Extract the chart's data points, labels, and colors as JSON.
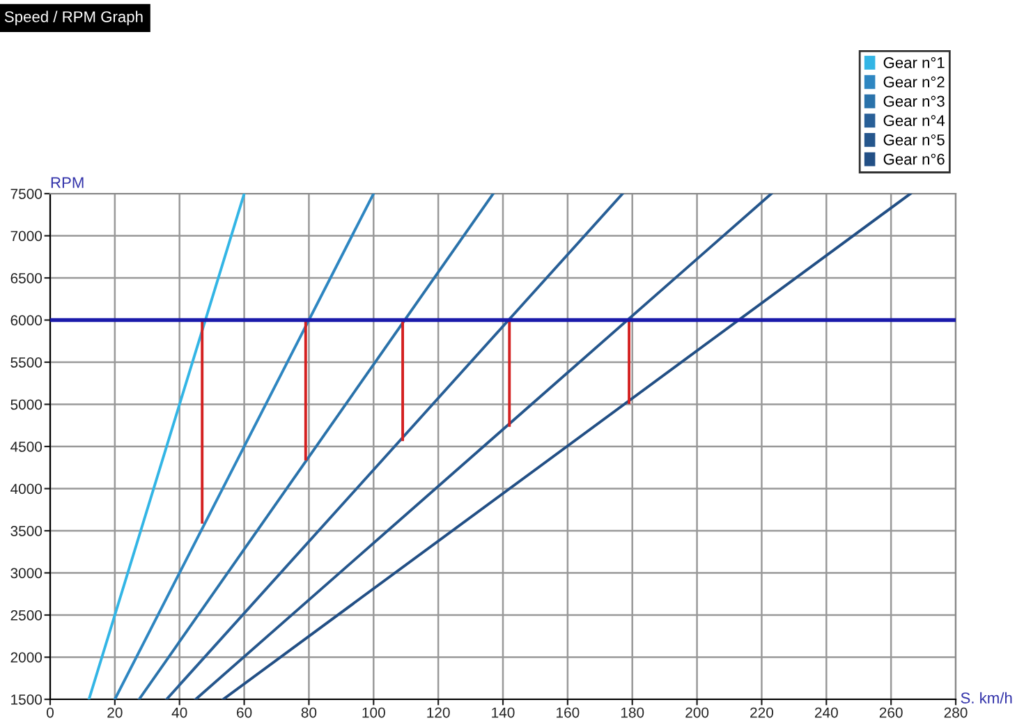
{
  "chart_data": {
    "type": "line",
    "title": "Speed / RPM Graph",
    "xlabel": "S. km/h",
    "ylabel": "RPM",
    "xlim": [
      0,
      280
    ],
    "ylim": [
      1500,
      7500
    ],
    "xticks": [
      0,
      20,
      40,
      60,
      80,
      100,
      120,
      140,
      160,
      180,
      200,
      220,
      240,
      260,
      280
    ],
    "yticks": [
      1500,
      2000,
      2500,
      3000,
      3500,
      4000,
      4500,
      5000,
      5500,
      6000,
      6500,
      7000,
      7500
    ],
    "grid": true,
    "legend": "top right",
    "marker": "none",
    "line_style": "solid",
    "series": [
      {
        "name": "Gear n°1",
        "color": "#33b5e5",
        "x": [
          12,
          60
        ],
        "values": [
          1500,
          7500
        ]
      },
      {
        "name": "Gear n°2",
        "color": "#2e86c1",
        "x": [
          20,
          100
        ],
        "values": [
          1500,
          7500
        ]
      },
      {
        "name": "Gear n°3",
        "color": "#2a72aa",
        "x": [
          27.5,
          137
        ],
        "values": [
          1500,
          7500
        ]
      },
      {
        "name": "Gear n°4",
        "color": "#285f97",
        "x": [
          36,
          177
        ],
        "values": [
          1500,
          7500
        ]
      },
      {
        "name": "Gear n°5",
        "color": "#25568c",
        "x": [
          45,
          223
        ],
        "values": [
          1500,
          7500
        ]
      },
      {
        "name": "Gear n°6",
        "color": "#224f85",
        "x": [
          53.5,
          266
        ],
        "values": [
          1500,
          7500
        ]
      },
      {
        "color": "#d42020",
        "x": [
          47,
          47
        ],
        "values": [
          6000,
          3600
        ]
      },
      {
        "color": "#d42020",
        "x": [
          79,
          79
        ],
        "values": [
          6000,
          4350
        ]
      },
      {
        "color": "#d42020",
        "x": [
          109,
          109
        ],
        "values": [
          6000,
          4580
        ]
      },
      {
        "color": "#d42020",
        "x": [
          142,
          142
        ],
        "values": [
          6000,
          4750
        ]
      },
      {
        "color": "#d42020",
        "x": [
          179,
          179
        ],
        "values": [
          6000,
          5020
        ]
      }
    ],
    "ref_lines": [
      {
        "axis": "y",
        "value": 6000,
        "color": "#1a1aaa",
        "line_style": "solid"
      }
    ]
  }
}
